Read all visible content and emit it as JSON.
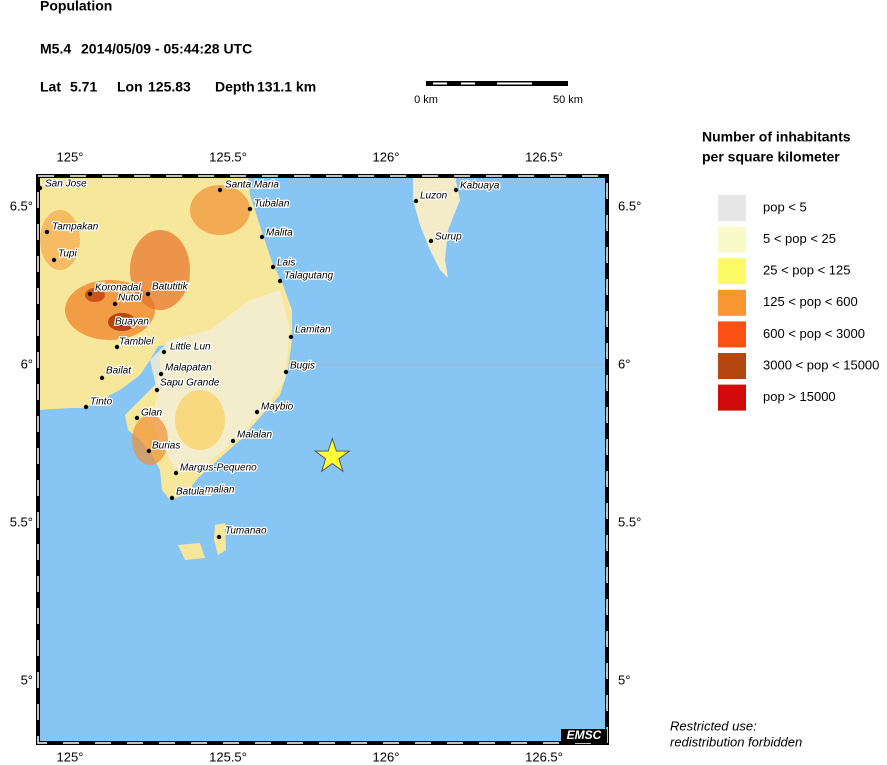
{
  "title": "Population",
  "event": {
    "magnitude": "M5.4",
    "datetime": "2014/05/09 - 05:44:28 UTC",
    "lat_label": "Lat",
    "lat": 5.71,
    "lon_label": "Lon",
    "lon": 125.83,
    "depth_label": "Depth",
    "depth": "131.1 km"
  },
  "scale": {
    "start": "0 km",
    "end": "50 km"
  },
  "map": {
    "lon_ticks": [
      {
        "value": 125,
        "label": "125°"
      },
      {
        "value": 125.5,
        "label": "125.5°"
      },
      {
        "value": 126,
        "label": "126°"
      },
      {
        "value": 126.5,
        "label": "126.5°"
      }
    ],
    "lat_ticks": [
      {
        "value": 6.5,
        "label": "6.5°"
      },
      {
        "value": 6,
        "label": "6°"
      },
      {
        "value": 5.5,
        "label": "5.5°"
      },
      {
        "value": 5,
        "label": "5°"
      }
    ],
    "cities": [
      "San Jose",
      "Santa Maria",
      "Tubalan",
      "Malita",
      "Lais",
      "Talagutang",
      "Lamitan",
      "Bugis",
      "Maybio",
      "Malalan",
      "Margus-Pequeno",
      "Batulaki",
      "malian",
      "Tumanao",
      "Luzon",
      "Kabuaya",
      "Surup",
      "Tampakan",
      "Tupi",
      "Koronadal",
      "Nutol",
      "Batutitik",
      "Buayan",
      "Tamblel",
      "Little Lun",
      "Malapatan",
      "Sapu Grande",
      "Bailat",
      "Tinto",
      "Glan",
      "Burias"
    ],
    "logo": "EMSC"
  },
  "legend": {
    "title": [
      "Number of inhabitants",
      "per square kilometer"
    ],
    "items": [
      {
        "label": "pop < 5",
        "color": "#e6e6e6"
      },
      {
        "label": "5 < pop < 25",
        "color": "#fafac8"
      },
      {
        "label": "25 < pop < 125",
        "color": "#fafa64"
      },
      {
        "label": "125 < pop < 600",
        "color": "#fa9632"
      },
      {
        "label": "600 < pop < 3000",
        "color": "#fa5014"
      },
      {
        "label": "3000 < pop < 15000",
        "color": "#b4460f"
      },
      {
        "label": "pop > 15000",
        "color": "#d20a0a"
      }
    ]
  },
  "footer": [
    "Restricted use:",
    "redistribution forbidden"
  ]
}
